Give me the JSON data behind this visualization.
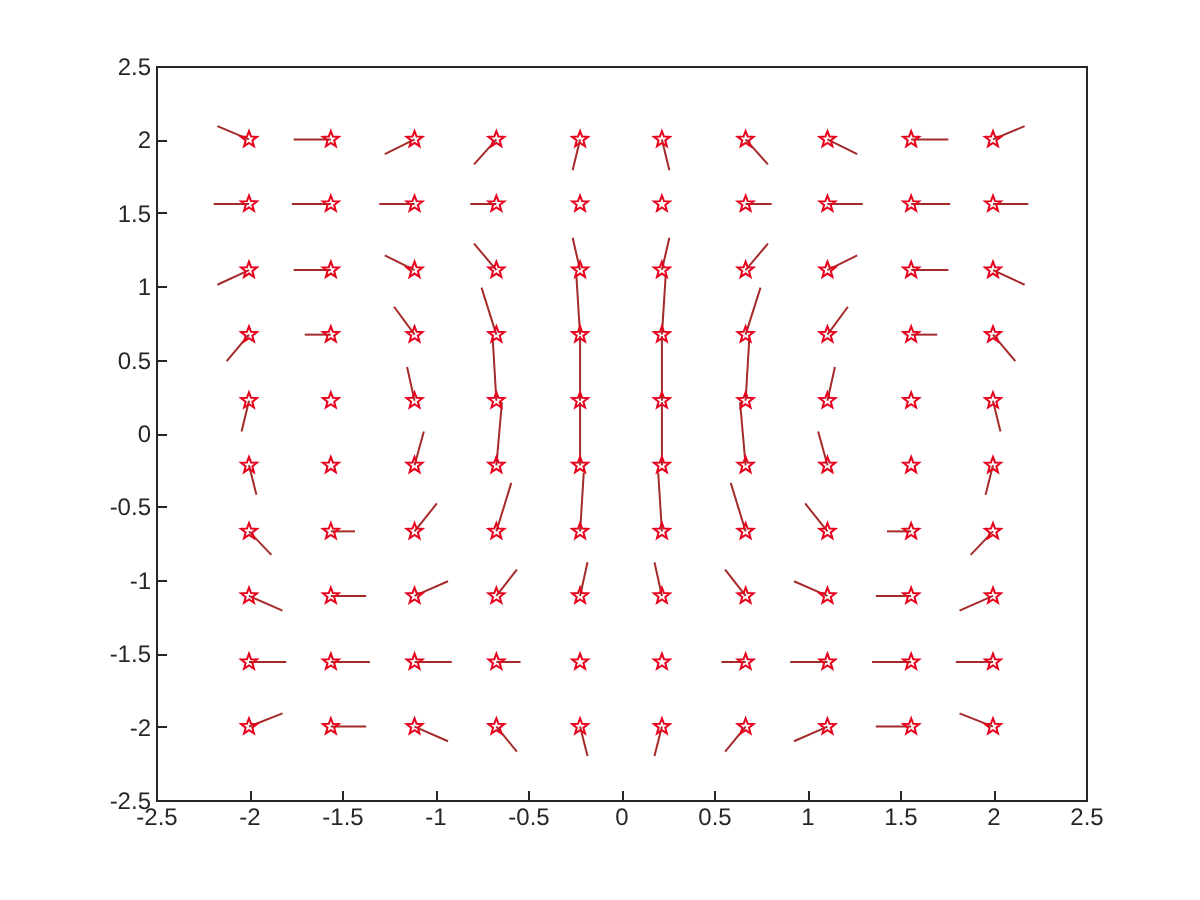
{
  "chart_data": {
    "type": "scatter",
    "xlim": [
      -2.5,
      2.5
    ],
    "ylim": [
      -2.5,
      2.5
    ],
    "xticks": [
      -2.5,
      -2,
      -1.5,
      -1,
      -0.5,
      0,
      0.5,
      1,
      1.5,
      2,
      2.5
    ],
    "yticks": [
      -2.5,
      -2,
      -1.5,
      -1,
      -0.5,
      0,
      0.5,
      1,
      1.5,
      2,
      2.5
    ],
    "grid": false,
    "series": [
      {
        "type": "line",
        "color": "#a52a2a",
        "marker": "none",
        "x": [
          -2,
          -2.17,
          null,
          -1.56,
          -1.76,
          null,
          -1.11,
          -1.27,
          null,
          -0.67,
          -0.79,
          null,
          -0.22,
          -0.26,
          null,
          0.22,
          0.26,
          null,
          0.67,
          0.79,
          null,
          1.11,
          1.27,
          null,
          1.56,
          1.76,
          null,
          2,
          2.17
        ],
        "values": [
          2,
          2.09,
          null,
          2,
          2,
          null,
          2,
          1.9,
          null,
          2,
          1.83,
          null,
          2,
          1.79,
          null,
          2,
          1.79,
          null,
          2,
          1.83,
          null,
          2,
          1.9,
          null,
          2,
          2,
          null,
          2,
          2.09
        ]
      },
      {
        "type": "line",
        "color": "#a52a2a",
        "marker": "none",
        "x": [
          -2,
          -2.19,
          null,
          -1.56,
          -1.77,
          null,
          -1.11,
          -1.3,
          null,
          -0.67,
          -0.81,
          null,
          0.67,
          0.81,
          null,
          1.11,
          1.3,
          null,
          1.56,
          1.77,
          null,
          2,
          2.19
        ],
        "values": [
          1.56,
          1.56,
          null,
          1.56,
          1.56,
          null,
          1.56,
          1.56,
          null,
          1.56,
          1.56,
          null,
          1.56,
          1.56,
          null,
          1.56,
          1.56,
          null,
          1.56,
          1.56,
          null,
          1.56,
          1.56
        ]
      },
      {
        "type": "line",
        "color": "#a52a2a",
        "marker": "none",
        "x": [
          -2,
          -2.17,
          null,
          -1.56,
          -1.76,
          null,
          -1.11,
          -1.27,
          null,
          -0.67,
          -0.79,
          null,
          -0.22,
          -0.26,
          null,
          0.22,
          0.26,
          null,
          0.67,
          0.79,
          null,
          1.11,
          1.27,
          null,
          1.56,
          1.76,
          null,
          2,
          2.17
        ],
        "values": [
          1.11,
          1.01,
          null,
          1.11,
          1.11,
          null,
          1.11,
          1.21,
          null,
          1.11,
          1.29,
          null,
          1.11,
          1.33,
          null,
          1.11,
          1.33,
          null,
          1.11,
          1.29,
          null,
          1.11,
          1.21,
          null,
          1.11,
          1.11,
          null,
          1.11,
          1.01
        ]
      },
      {
        "type": "line",
        "color": "#a52a2a",
        "marker": "none",
        "x": [
          -2,
          -2.12,
          null,
          -1.56,
          -1.7,
          null,
          -1.11,
          -1.22,
          null,
          -0.67,
          -0.75,
          null,
          -0.22,
          -0.24,
          null,
          0.22,
          0.24,
          null,
          0.67,
          0.75,
          null,
          1.11,
          1.22,
          null,
          1.56,
          1.7,
          null,
          2,
          2.12
        ],
        "values": [
          0.67,
          0.49,
          null,
          0.67,
          0.67,
          null,
          0.67,
          0.86,
          null,
          0.67,
          0.99,
          null,
          0.67,
          1.07,
          null,
          0.67,
          1.07,
          null,
          0.67,
          0.99,
          null,
          0.67,
          0.86,
          null,
          0.67,
          0.67,
          null,
          0.67,
          0.49
        ]
      },
      {
        "type": "line",
        "color": "#a52a2a",
        "marker": "none",
        "x": [
          -2,
          -2.04,
          null,
          -1.11,
          -1.15,
          null,
          -0.67,
          -0.69,
          null,
          -0.22,
          -0.22,
          null,
          0.22,
          0.22,
          null,
          0.67,
          0.69,
          null,
          1.11,
          1.15,
          null,
          2,
          2.04
        ],
        "values": [
          0.22,
          0.01,
          null,
          0.22,
          0.45,
          null,
          0.22,
          0.65,
          null,
          0.22,
          0.66,
          null,
          0.22,
          0.66,
          null,
          0.22,
          0.65,
          null,
          0.22,
          0.45,
          null,
          0.22,
          0.01
        ]
      },
      {
        "type": "line",
        "color": "#a52a2a",
        "marker": "none",
        "x": [
          -2,
          -1.96,
          null,
          -1.11,
          -1.06,
          null,
          -0.67,
          -0.64,
          null,
          -0.22,
          -0.22,
          null,
          0.22,
          0.22,
          null,
          0.67,
          0.64,
          null,
          1.11,
          1.06,
          null,
          2,
          1.96
        ],
        "values": [
          -0.22,
          -0.42,
          null,
          -0.22,
          0.01,
          null,
          -0.22,
          0.21,
          null,
          -0.22,
          0.21,
          null,
          -0.22,
          0.21,
          null,
          -0.22,
          0.21,
          null,
          -0.22,
          0.01,
          null,
          -0.22,
          -0.42
        ]
      },
      {
        "type": "line",
        "color": "#a52a2a",
        "marker": "none",
        "x": [
          -2,
          -1.88,
          null,
          -1.56,
          -1.43,
          null,
          -1.11,
          -0.99,
          null,
          -0.67,
          -0.59,
          null,
          -0.22,
          -0.2,
          null,
          0.22,
          0.2,
          null,
          0.67,
          0.59,
          null,
          1.11,
          0.99,
          null,
          1.56,
          1.43,
          null,
          2,
          1.88
        ],
        "values": [
          -0.67,
          -0.83,
          null,
          -0.67,
          -0.67,
          null,
          -0.67,
          -0.48,
          null,
          -0.67,
          -0.34,
          null,
          -0.67,
          -0.27,
          null,
          -0.67,
          -0.27,
          null,
          -0.67,
          -0.34,
          null,
          -0.67,
          -0.48,
          null,
          -0.67,
          -0.67,
          null,
          -0.67,
          -0.83
        ]
      },
      {
        "type": "line",
        "color": "#a52a2a",
        "marker": "none",
        "x": [
          -2,
          -1.82,
          null,
          -1.56,
          -1.37,
          null,
          -1.11,
          -0.93,
          null,
          -0.67,
          -0.56,
          null,
          -0.22,
          -0.18,
          null,
          0.22,
          0.18,
          null,
          0.67,
          0.56,
          null,
          1.11,
          0.93,
          null,
          1.56,
          1.37,
          null,
          2,
          1.82
        ],
        "values": [
          -1.11,
          -1.21,
          null,
          -1.11,
          -1.11,
          null,
          -1.11,
          -1.01,
          null,
          -1.11,
          -0.93,
          null,
          -1.11,
          -0.88,
          null,
          -1.11,
          -0.88,
          null,
          -1.11,
          -0.93,
          null,
          -1.11,
          -1.01,
          null,
          -1.11,
          -1.11,
          null,
          -1.11,
          -1.21
        ]
      },
      {
        "type": "line",
        "color": "#a52a2a",
        "marker": "none",
        "x": [
          -2,
          -1.8,
          null,
          -1.56,
          -1.35,
          null,
          -1.11,
          -0.91,
          null,
          -0.67,
          -0.54,
          null,
          0.67,
          0.54,
          null,
          1.11,
          0.91,
          null,
          1.56,
          1.35,
          null,
          2,
          1.8
        ],
        "values": [
          -1.56,
          -1.56,
          null,
          -1.56,
          -1.56,
          null,
          -1.56,
          -1.56,
          null,
          -1.56,
          -1.56,
          null,
          -1.56,
          -1.56,
          null,
          -1.56,
          -1.56,
          null,
          -1.56,
          -1.56,
          null,
          -1.56,
          -1.56
        ]
      },
      {
        "type": "line",
        "color": "#a52a2a",
        "marker": "none",
        "x": [
          -2,
          -1.82,
          null,
          -1.56,
          -1.37,
          null,
          -1.11,
          -0.93,
          null,
          -0.67,
          -0.56,
          null,
          -0.22,
          -0.18,
          null,
          0.22,
          0.18,
          null,
          0.67,
          0.56,
          null,
          1.11,
          0.93,
          null,
          1.56,
          1.37,
          null,
          2,
          1.82
        ],
        "values": [
          -2,
          -1.91,
          null,
          -2,
          -2,
          null,
          -2,
          -2.1,
          null,
          -2,
          -2.17,
          null,
          -2,
          -2.2,
          null,
          -2,
          -2.2,
          null,
          -2,
          -2.17,
          null,
          -2,
          -2.1,
          null,
          -2,
          -2,
          null,
          -2,
          -1.91
        ]
      },
      {
        "type": "scatter",
        "color": "#e8001c",
        "marker": "star",
        "x": [
          -2,
          -1.56,
          -1.11,
          -0.67,
          -0.22,
          0.22,
          0.67,
          1.11,
          1.56,
          2,
          -2,
          -1.56,
          -1.11,
          -0.67,
          -0.22,
          0.22,
          0.67,
          1.11,
          1.56,
          2,
          -2,
          -1.56,
          -1.11,
          -0.67,
          -0.22,
          0.22,
          0.67,
          1.11,
          1.56,
          2,
          -2,
          -1.56,
          -1.11,
          -0.67,
          -0.22,
          0.22,
          0.67,
          1.11,
          1.56,
          2,
          -2,
          -1.56,
          -1.11,
          -0.67,
          -0.22,
          0.22,
          0.67,
          1.11,
          1.56,
          2,
          -2,
          -1.56,
          -1.11,
          -0.67,
          -0.22,
          0.22,
          0.67,
          1.11,
          1.56,
          2,
          -2,
          -1.56,
          -1.11,
          -0.67,
          -0.22,
          0.22,
          0.67,
          1.11,
          1.56,
          2,
          -2,
          -1.56,
          -1.11,
          -0.67,
          -0.22,
          0.22,
          0.67,
          1.11,
          1.56,
          2,
          -2,
          -1.56,
          -1.11,
          -0.67,
          -0.22,
          0.22,
          0.67,
          1.11,
          1.56,
          2,
          -2,
          -1.56,
          -1.11,
          -0.67,
          -0.22,
          0.22,
          0.67,
          1.11,
          1.56,
          2
        ],
        "values": [
          2,
          2,
          2,
          2,
          2,
          2,
          2,
          2,
          2,
          2,
          1.56,
          1.56,
          1.56,
          1.56,
          1.56,
          1.56,
          1.56,
          1.56,
          1.56,
          1.56,
          1.11,
          1.11,
          1.11,
          1.11,
          1.11,
          1.11,
          1.11,
          1.11,
          1.11,
          1.11,
          0.67,
          0.67,
          0.67,
          0.67,
          0.67,
          0.67,
          0.67,
          0.67,
          0.67,
          0.67,
          0.22,
          0.22,
          0.22,
          0.22,
          0.22,
          0.22,
          0.22,
          0.22,
          0.22,
          0.22,
          -0.22,
          -0.22,
          -0.22,
          -0.22,
          -0.22,
          -0.22,
          -0.22,
          -0.22,
          -0.22,
          -0.22,
          -0.67,
          -0.67,
          -0.67,
          -0.67,
          -0.67,
          -0.67,
          -0.67,
          -0.67,
          -0.67,
          -0.67,
          -1.11,
          -1.11,
          -1.11,
          -1.11,
          -1.11,
          -1.11,
          -1.11,
          -1.11,
          -1.11,
          -1.11,
          -1.56,
          -1.56,
          -1.56,
          -1.56,
          -1.56,
          -1.56,
          -1.56,
          -1.56,
          -1.56,
          -1.56,
          -2,
          -2,
          -2,
          -2,
          -2,
          -2,
          -2,
          -2,
          -2,
          -2
        ]
      }
    ]
  }
}
